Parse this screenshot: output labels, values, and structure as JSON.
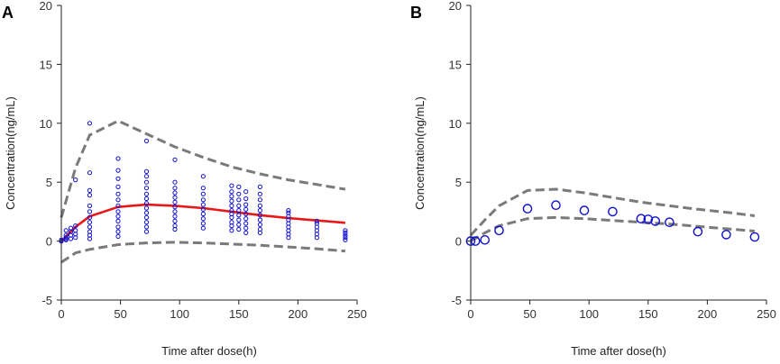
{
  "chart_data": [
    {
      "type": "scatter",
      "panel_label": "A",
      "xlabel": "Time after dose(h)",
      "ylabel": "Concentration(ng/mL)",
      "xlim": [
        0,
        250
      ],
      "ylim": [
        -5,
        20
      ],
      "xticks": [
        0,
        50,
        100,
        150,
        200,
        250
      ],
      "yticks": [
        -5,
        0,
        5,
        10,
        15,
        20
      ],
      "colors": {
        "observed": "#1010d0",
        "median": "#e81818",
        "interval": "#7a7a7a"
      },
      "series": [
        {
          "name": "Observed",
          "style": "small-open-circle",
          "points": [
            [
              0,
              0
            ],
            [
              0,
              0.1
            ],
            [
              0,
              0
            ],
            [
              4,
              0.1
            ],
            [
              4,
              0.3
            ],
            [
              4,
              0.5
            ],
            [
              4,
              0.9
            ],
            [
              4,
              0.2
            ],
            [
              8,
              0.2
            ],
            [
              8,
              0.5
            ],
            [
              8,
              0.8
            ],
            [
              8,
              1.1
            ],
            [
              12,
              0.3
            ],
            [
              12,
              0.6
            ],
            [
              12,
              0.9
            ],
            [
              12,
              1.3
            ],
            [
              12,
              5.2
            ],
            [
              24,
              0.2
            ],
            [
              24,
              0.5
            ],
            [
              24,
              0.8
            ],
            [
              24,
              1.2
            ],
            [
              24,
              1.6
            ],
            [
              24,
              2.0
            ],
            [
              24,
              2.5
            ],
            [
              24,
              3.0
            ],
            [
              24,
              3.9
            ],
            [
              24,
              4.3
            ],
            [
              24,
              5.8
            ],
            [
              24,
              10.0
            ],
            [
              48,
              0.4
            ],
            [
              48,
              0.8
            ],
            [
              48,
              1.2
            ],
            [
              48,
              1.7
            ],
            [
              48,
              2.1
            ],
            [
              48,
              2.5
            ],
            [
              48,
              3.0
            ],
            [
              48,
              3.5
            ],
            [
              48,
              4.0
            ],
            [
              48,
              4.6
            ],
            [
              48,
              5.3
            ],
            [
              48,
              6.0
            ],
            [
              48,
              7.0
            ],
            [
              72,
              0.8
            ],
            [
              72,
              1.2
            ],
            [
              72,
              1.6
            ],
            [
              72,
              2.0
            ],
            [
              72,
              2.4
            ],
            [
              72,
              2.8
            ],
            [
              72,
              3.2
            ],
            [
              72,
              3.6
            ],
            [
              72,
              4.0
            ],
            [
              72,
              4.5
            ],
            [
              72,
              5.0
            ],
            [
              72,
              5.5
            ],
            [
              72,
              5.9
            ],
            [
              72,
              8.5
            ],
            [
              96,
              1.0
            ],
            [
              96,
              1.3
            ],
            [
              96,
              1.7
            ],
            [
              96,
              2.1
            ],
            [
              96,
              2.5
            ],
            [
              96,
              2.9
            ],
            [
              96,
              3.3
            ],
            [
              96,
              3.7
            ],
            [
              96,
              4.1
            ],
            [
              96,
              4.5
            ],
            [
              96,
              5.0
            ],
            [
              96,
              6.9
            ],
            [
              120,
              1.1
            ],
            [
              120,
              1.5
            ],
            [
              120,
              1.9
            ],
            [
              120,
              2.3
            ],
            [
              120,
              2.7
            ],
            [
              120,
              3.1
            ],
            [
              120,
              3.5
            ],
            [
              120,
              4.0
            ],
            [
              120,
              4.5
            ],
            [
              120,
              5.5
            ],
            [
              144,
              0.9
            ],
            [
              144,
              1.3
            ],
            [
              144,
              1.6
            ],
            [
              144,
              2.0
            ],
            [
              144,
              2.3
            ],
            [
              144,
              2.6
            ],
            [
              144,
              3.0
            ],
            [
              144,
              3.4
            ],
            [
              144,
              3.8
            ],
            [
              144,
              4.2
            ],
            [
              144,
              4.7
            ],
            [
              150,
              1.0
            ],
            [
              150,
              1.4
            ],
            [
              150,
              1.8
            ],
            [
              150,
              2.2
            ],
            [
              150,
              2.6
            ],
            [
              150,
              3.0
            ],
            [
              150,
              3.5
            ],
            [
              150,
              4.0
            ],
            [
              150,
              4.6
            ],
            [
              156,
              0.7
            ],
            [
              156,
              1.1
            ],
            [
              156,
              1.5
            ],
            [
              156,
              1.9
            ],
            [
              156,
              2.3
            ],
            [
              156,
              2.7
            ],
            [
              156,
              3.1
            ],
            [
              156,
              3.6
            ],
            [
              156,
              4.2
            ],
            [
              168,
              0.7
            ],
            [
              168,
              1.0
            ],
            [
              168,
              1.4
            ],
            [
              168,
              1.8
            ],
            [
              168,
              2.2
            ],
            [
              168,
              2.6
            ],
            [
              168,
              3.0
            ],
            [
              168,
              3.5
            ],
            [
              168,
              4.0
            ],
            [
              168,
              4.6
            ],
            [
              192,
              0.3
            ],
            [
              192,
              0.6
            ],
            [
              192,
              0.9
            ],
            [
              192,
              1.2
            ],
            [
              192,
              1.5
            ],
            [
              192,
              1.8
            ],
            [
              192,
              2.1
            ],
            [
              192,
              2.4
            ],
            [
              192,
              2.6
            ],
            [
              216,
              0.3
            ],
            [
              216,
              0.6
            ],
            [
              216,
              0.9
            ],
            [
              216,
              1.2
            ],
            [
              216,
              1.5
            ],
            [
              216,
              1.7
            ],
            [
              240,
              0.1
            ],
            [
              240,
              0.3
            ],
            [
              240,
              0.5
            ],
            [
              240,
              0.7
            ],
            [
              240,
              0.9
            ]
          ]
        },
        {
          "name": "Median",
          "style": "solid-line",
          "points": [
            [
              0,
              0
            ],
            [
              12,
              1.2
            ],
            [
              24,
              2.1
            ],
            [
              48,
              2.9
            ],
            [
              72,
              3.1
            ],
            [
              96,
              3.0
            ],
            [
              120,
              2.8
            ],
            [
              144,
              2.5
            ],
            [
              168,
              2.2
            ],
            [
              192,
              1.95
            ],
            [
              216,
              1.75
            ],
            [
              240,
              1.55
            ]
          ]
        },
        {
          "name": "Upper interval",
          "style": "dashed-line",
          "points": [
            [
              0,
              2.0
            ],
            [
              12,
              6.2
            ],
            [
              24,
              9.0
            ],
            [
              48,
              10.2
            ],
            [
              72,
              9.1
            ],
            [
              96,
              8.0
            ],
            [
              120,
              7.1
            ],
            [
              144,
              6.3
            ],
            [
              168,
              5.7
            ],
            [
              192,
              5.2
            ],
            [
              216,
              4.8
            ],
            [
              240,
              4.4
            ]
          ]
        },
        {
          "name": "Lower interval",
          "style": "dashed-line",
          "points": [
            [
              0,
              -1.8
            ],
            [
              12,
              -1.0
            ],
            [
              24,
              -0.7
            ],
            [
              48,
              -0.3
            ],
            [
              72,
              -0.15
            ],
            [
              96,
              -0.1
            ],
            [
              120,
              -0.15
            ],
            [
              144,
              -0.25
            ],
            [
              168,
              -0.35
            ],
            [
              192,
              -0.5
            ],
            [
              216,
              -0.65
            ],
            [
              240,
              -0.85
            ]
          ]
        }
      ]
    },
    {
      "type": "scatter",
      "panel_label": "B",
      "xlabel": "Time after dose(h)",
      "ylabel": "Concentration(ng/mL)",
      "xlim": [
        0,
        250
      ],
      "ylim": [
        -5,
        20
      ],
      "xticks": [
        0,
        50,
        100,
        150,
        200,
        250
      ],
      "yticks": [
        -5,
        0,
        5,
        10,
        15,
        20
      ],
      "colors": {
        "observed": "#1010d0",
        "median": "#e81818",
        "interval": "#7a7a7a"
      },
      "series": [
        {
          "name": "Observed",
          "style": "large-open-circle",
          "points": [
            [
              0,
              0
            ],
            [
              4,
              0
            ],
            [
              12,
              0.1
            ],
            [
              24,
              0.9
            ],
            [
              48,
              2.75
            ],
            [
              72,
              3.05
            ],
            [
              96,
              2.6
            ],
            [
              120,
              2.5
            ],
            [
              144,
              1.9
            ],
            [
              150,
              1.85
            ],
            [
              156,
              1.7
            ],
            [
              168,
              1.6
            ],
            [
              192,
              0.8
            ],
            [
              216,
              0.55
            ],
            [
              240,
              0.35
            ]
          ]
        },
        {
          "name": "Upper interval",
          "style": "dashed-line",
          "points": [
            [
              0,
              0.5
            ],
            [
              12,
              1.8
            ],
            [
              24,
              3.0
            ],
            [
              48,
              4.3
            ],
            [
              72,
              4.4
            ],
            [
              96,
              4.1
            ],
            [
              120,
              3.7
            ],
            [
              144,
              3.3
            ],
            [
              168,
              3.0
            ],
            [
              192,
              2.7
            ],
            [
              216,
              2.45
            ],
            [
              240,
              2.15
            ]
          ]
        },
        {
          "name": "Lower interval",
          "style": "dashed-line",
          "points": [
            [
              0,
              0
            ],
            [
              12,
              0.7
            ],
            [
              24,
              1.3
            ],
            [
              48,
              1.9
            ],
            [
              72,
              2.0
            ],
            [
              96,
              1.9
            ],
            [
              120,
              1.75
            ],
            [
              144,
              1.6
            ],
            [
              168,
              1.45
            ],
            [
              192,
              1.25
            ],
            [
              216,
              1.05
            ],
            [
              240,
              0.85
            ]
          ]
        }
      ]
    }
  ]
}
